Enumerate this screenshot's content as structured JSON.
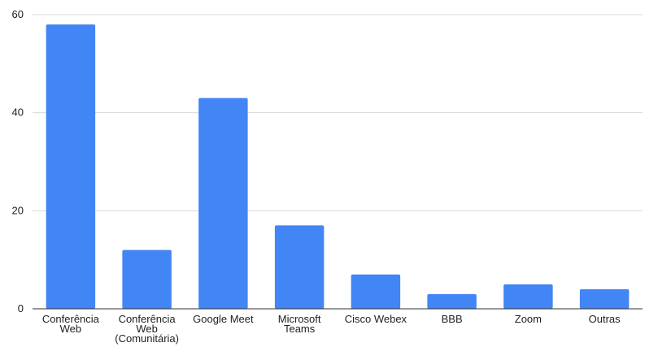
{
  "chart_data": {
    "type": "bar",
    "categories": [
      [
        "Conferência",
        "Web"
      ],
      [
        "Conferência",
        "Web",
        "(Comunitária)"
      ],
      [
        "Google Meet"
      ],
      [
        "Microsoft",
        "Teams"
      ],
      [
        "Cisco Webex"
      ],
      [
        "BBB"
      ],
      [
        "Zoom"
      ],
      [
        "Outras"
      ]
    ],
    "values": [
      58,
      12,
      43,
      17,
      7,
      3,
      5,
      4
    ],
    "ylim": [
      0,
      60
    ],
    "yticks": [
      0,
      20,
      40,
      60
    ],
    "grid": true,
    "bar_color": "#4285f4",
    "title": "",
    "xlabel": "",
    "ylabel": ""
  }
}
